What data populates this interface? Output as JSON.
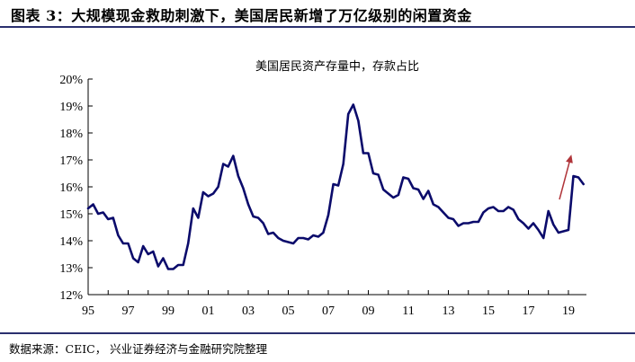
{
  "figure": {
    "title": "图表 3：大规模现金救助刺激下，美国居民新增了万亿级别的闲置资金",
    "source": "数据来源：CEIC，   兴业证券经济与金融研究院整理"
  },
  "colors": {
    "line": "#0b0b6b",
    "arrow": "#b0353a",
    "rule": "#2a2f6e"
  },
  "chart_data": {
    "type": "line",
    "title": "美国居民资产存量中，存款占比",
    "xlabel": "",
    "ylabel": "",
    "xlim": [
      1995.0,
      2019.9
    ],
    "ylim": [
      12,
      20
    ],
    "y_ticks": [
      12,
      13,
      14,
      15,
      16,
      17,
      18,
      19,
      20
    ],
    "y_tick_labels": [
      "12%",
      "13%",
      "14%",
      "15%",
      "16%",
      "17%",
      "18%",
      "19%",
      "20%"
    ],
    "x_ticks": [
      1995,
      1997,
      1999,
      2001,
      2003,
      2005,
      2007,
      2009,
      2011,
      2013,
      2015,
      2017,
      2019
    ],
    "x_tick_labels": [
      "95",
      "97",
      "99",
      "01",
      "03",
      "05",
      "07",
      "09",
      "11",
      "13",
      "15",
      "17",
      "19"
    ],
    "grid": false,
    "annotation": "upward arrow near 2018–2019",
    "series": [
      {
        "values": [
          [
            1995.0,
            15.2
          ],
          [
            1995.25,
            15.35
          ],
          [
            1995.5,
            15.0
          ],
          [
            1995.75,
            15.05
          ],
          [
            1996.0,
            14.8
          ],
          [
            1996.25,
            14.85
          ],
          [
            1996.5,
            14.2
          ],
          [
            1996.75,
            13.9
          ],
          [
            1997.0,
            13.9
          ],
          [
            1997.25,
            13.35
          ],
          [
            1997.5,
            13.2
          ],
          [
            1997.75,
            13.8
          ],
          [
            1998.0,
            13.5
          ],
          [
            1998.25,
            13.6
          ],
          [
            1998.5,
            13.05
          ],
          [
            1998.75,
            13.35
          ],
          [
            1999.0,
            12.95
          ],
          [
            1999.25,
            12.95
          ],
          [
            1999.5,
            13.1
          ],
          [
            1999.75,
            13.1
          ],
          [
            2000.0,
            13.9
          ],
          [
            2000.25,
            15.2
          ],
          [
            2000.5,
            14.85
          ],
          [
            2000.75,
            15.8
          ],
          [
            2001.0,
            15.65
          ],
          [
            2001.25,
            15.75
          ],
          [
            2001.5,
            16.0
          ],
          [
            2001.75,
            16.85
          ],
          [
            2002.0,
            16.75
          ],
          [
            2002.25,
            17.15
          ],
          [
            2002.5,
            16.4
          ],
          [
            2002.75,
            15.95
          ],
          [
            2003.0,
            15.35
          ],
          [
            2003.25,
            14.9
          ],
          [
            2003.5,
            14.85
          ],
          [
            2003.75,
            14.65
          ],
          [
            2004.0,
            14.25
          ],
          [
            2004.25,
            14.3
          ],
          [
            2004.5,
            14.1
          ],
          [
            2004.75,
            14.0
          ],
          [
            2005.0,
            13.95
          ],
          [
            2005.25,
            13.9
          ],
          [
            2005.5,
            14.1
          ],
          [
            2005.75,
            14.1
          ],
          [
            2006.0,
            14.05
          ],
          [
            2006.25,
            14.2
          ],
          [
            2006.5,
            14.15
          ],
          [
            2006.75,
            14.3
          ],
          [
            2007.0,
            14.95
          ],
          [
            2007.25,
            16.1
          ],
          [
            2007.5,
            16.05
          ],
          [
            2007.75,
            16.85
          ],
          [
            2008.0,
            18.7
          ],
          [
            2008.25,
            19.05
          ],
          [
            2008.5,
            18.45
          ],
          [
            2008.75,
            17.25
          ],
          [
            2009.0,
            17.25
          ],
          [
            2009.25,
            16.5
          ],
          [
            2009.5,
            16.45
          ],
          [
            2009.75,
            15.9
          ],
          [
            2010.0,
            15.75
          ],
          [
            2010.25,
            15.6
          ],
          [
            2010.5,
            15.7
          ],
          [
            2010.75,
            16.35
          ],
          [
            2011.0,
            16.3
          ],
          [
            2011.25,
            15.95
          ],
          [
            2011.5,
            15.9
          ],
          [
            2011.75,
            15.55
          ],
          [
            2012.0,
            15.85
          ],
          [
            2012.25,
            15.35
          ],
          [
            2012.5,
            15.25
          ],
          [
            2012.75,
            15.05
          ],
          [
            2013.0,
            14.85
          ],
          [
            2013.25,
            14.8
          ],
          [
            2013.5,
            14.55
          ],
          [
            2013.75,
            14.65
          ],
          [
            2014.0,
            14.65
          ],
          [
            2014.25,
            14.7
          ],
          [
            2014.5,
            14.7
          ],
          [
            2014.75,
            15.05
          ],
          [
            2015.0,
            15.2
          ],
          [
            2015.25,
            15.25
          ],
          [
            2015.5,
            15.1
          ],
          [
            2015.75,
            15.1
          ],
          [
            2016.0,
            15.25
          ],
          [
            2016.25,
            15.15
          ],
          [
            2016.5,
            14.8
          ],
          [
            2016.75,
            14.65
          ],
          [
            2017.0,
            14.45
          ],
          [
            2017.25,
            14.65
          ],
          [
            2017.5,
            14.4
          ],
          [
            2017.75,
            14.1
          ],
          [
            2018.0,
            15.1
          ],
          [
            2018.25,
            14.6
          ],
          [
            2018.5,
            14.3
          ],
          [
            2018.75,
            14.35
          ],
          [
            2019.0,
            14.4
          ],
          [
            2019.25,
            16.4
          ],
          [
            2019.5,
            16.35
          ],
          [
            2019.75,
            16.1
          ]
        ]
      }
    ]
  }
}
